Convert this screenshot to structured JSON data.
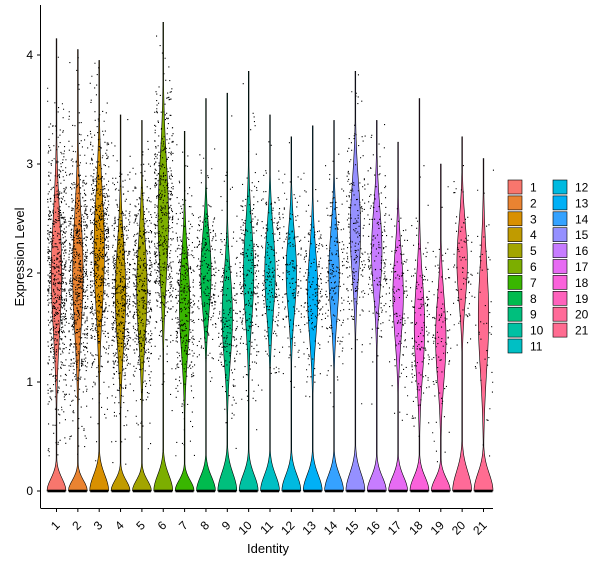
{
  "chart_data": {
    "type": "violin",
    "title": "",
    "xlabel": "Identity",
    "ylabel": "Expression Level",
    "ylim": [
      -0.15,
      4.4
    ],
    "yticks": [
      0,
      1,
      2,
      3,
      4
    ],
    "grid": false,
    "legend_placement": "right",
    "legend_columns": 2,
    "categories": [
      "1",
      "2",
      "3",
      "4",
      "5",
      "6",
      "7",
      "8",
      "9",
      "10",
      "11",
      "12",
      "13",
      "14",
      "15",
      "16",
      "17",
      "18",
      "19",
      "20",
      "21"
    ],
    "colors": [
      "#F8766D",
      "#EA8331",
      "#D89000",
      "#C09B00",
      "#A3A500",
      "#7CAE00",
      "#39B600",
      "#00BB4E",
      "#00BF7D",
      "#00C1A3",
      "#00BFC4",
      "#00BAE0",
      "#00B0F6",
      "#35A2FF",
      "#9590FF",
      "#C77CFF",
      "#E76BF3",
      "#FA62DB",
      "#FF62BC",
      "#FF6A98",
      "#FF6C91"
    ],
    "violins": [
      {
        "name": "1",
        "max": 4.15,
        "upper_center": 2.0,
        "upper_spread": 0.75,
        "lower_max": 0.35,
        "n_points": 700
      },
      {
        "name": "2",
        "max": 4.05,
        "upper_center": 2.0,
        "upper_spread": 0.75,
        "lower_max": 0.3,
        "n_points": 650
      },
      {
        "name": "3",
        "max": 3.95,
        "upper_center": 2.2,
        "upper_spread": 0.75,
        "lower_max": 0.45,
        "n_points": 600
      },
      {
        "name": "4",
        "max": 3.45,
        "upper_center": 1.8,
        "upper_spread": 0.65,
        "lower_max": 0.3,
        "n_points": 500
      },
      {
        "name": "5",
        "max": 3.4,
        "upper_center": 1.85,
        "upper_spread": 0.65,
        "lower_max": 0.3,
        "n_points": 450
      },
      {
        "name": "6",
        "max": 4.3,
        "upper_center": 2.5,
        "upper_spread": 0.75,
        "lower_max": 0.45,
        "n_points": 500
      },
      {
        "name": "7",
        "max": 3.3,
        "upper_center": 1.7,
        "upper_spread": 0.6,
        "lower_max": 0.3,
        "n_points": 350
      },
      {
        "name": "8",
        "max": 3.6,
        "upper_center": 2.0,
        "upper_spread": 0.5,
        "lower_max": 0.4,
        "n_points": 220
      },
      {
        "name": "9",
        "max": 3.65,
        "upper_center": 1.6,
        "upper_spread": 0.55,
        "lower_max": 0.5,
        "n_points": 200
      },
      {
        "name": "10",
        "max": 3.85,
        "upper_center": 2.0,
        "upper_spread": 0.6,
        "lower_max": 0.45,
        "n_points": 260
      },
      {
        "name": "11",
        "max": 3.45,
        "upper_center": 2.0,
        "upper_spread": 0.55,
        "lower_max": 0.45,
        "n_points": 200
      },
      {
        "name": "12",
        "max": 3.25,
        "upper_center": 2.0,
        "upper_spread": 0.5,
        "lower_max": 0.45,
        "n_points": 150
      },
      {
        "name": "13",
        "max": 3.35,
        "upper_center": 1.8,
        "upper_spread": 0.55,
        "lower_max": 0.45,
        "n_points": 170
      },
      {
        "name": "14",
        "max": 3.4,
        "upper_center": 2.0,
        "upper_spread": 0.55,
        "lower_max": 0.45,
        "n_points": 170
      },
      {
        "name": "15",
        "max": 3.85,
        "upper_center": 2.4,
        "upper_spread": 0.6,
        "lower_max": 0.5,
        "n_points": 200
      },
      {
        "name": "16",
        "max": 3.4,
        "upper_center": 2.2,
        "upper_spread": 0.55,
        "lower_max": 0.4,
        "n_points": 170
      },
      {
        "name": "17",
        "max": 3.2,
        "upper_center": 1.8,
        "upper_spread": 0.55,
        "lower_max": 0.4,
        "n_points": 130
      },
      {
        "name": "18",
        "max": 3.6,
        "upper_center": 1.5,
        "upper_spread": 0.6,
        "lower_max": 0.4,
        "n_points": 150
      },
      {
        "name": "19",
        "max": 3.0,
        "upper_center": 1.4,
        "upper_spread": 0.55,
        "lower_max": 0.35,
        "n_points": 100
      },
      {
        "name": "20",
        "max": 3.25,
        "upper_center": 2.1,
        "upper_spread": 0.5,
        "lower_max": 0.55,
        "n_points": 80
      },
      {
        "name": "21",
        "max": 3.05,
        "upper_center": 1.6,
        "upper_spread": 0.7,
        "lower_max": 0.5,
        "n_points": 50
      }
    ]
  }
}
